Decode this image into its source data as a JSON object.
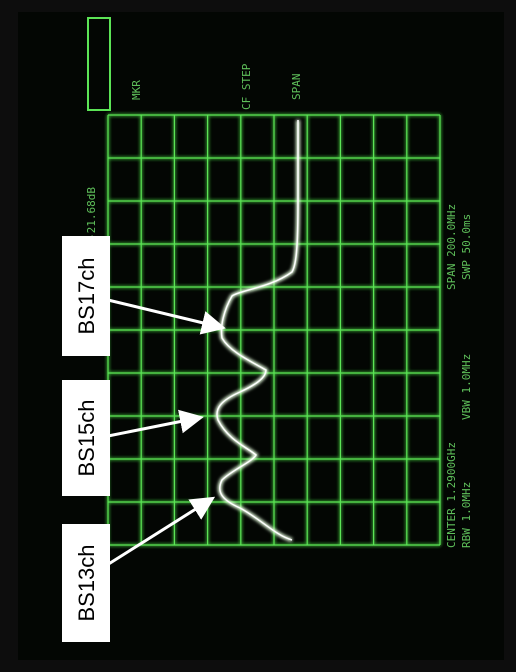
{
  "labels": [
    "BS17ch",
    "BS15ch",
    "BS13ch"
  ],
  "screen": {
    "center": "CENTER 1.2900GHz",
    "rbw": "RBW 1.0MHz",
    "vbw": "VBW 1.0MHz",
    "span": "SPAN 200.0MHz",
    "swp": "SWP 50.0ms",
    "marker_level": "-21.68dB",
    "softkeys": [
      "MKR",
      "CF STEP",
      "SPAN"
    ]
  }
}
